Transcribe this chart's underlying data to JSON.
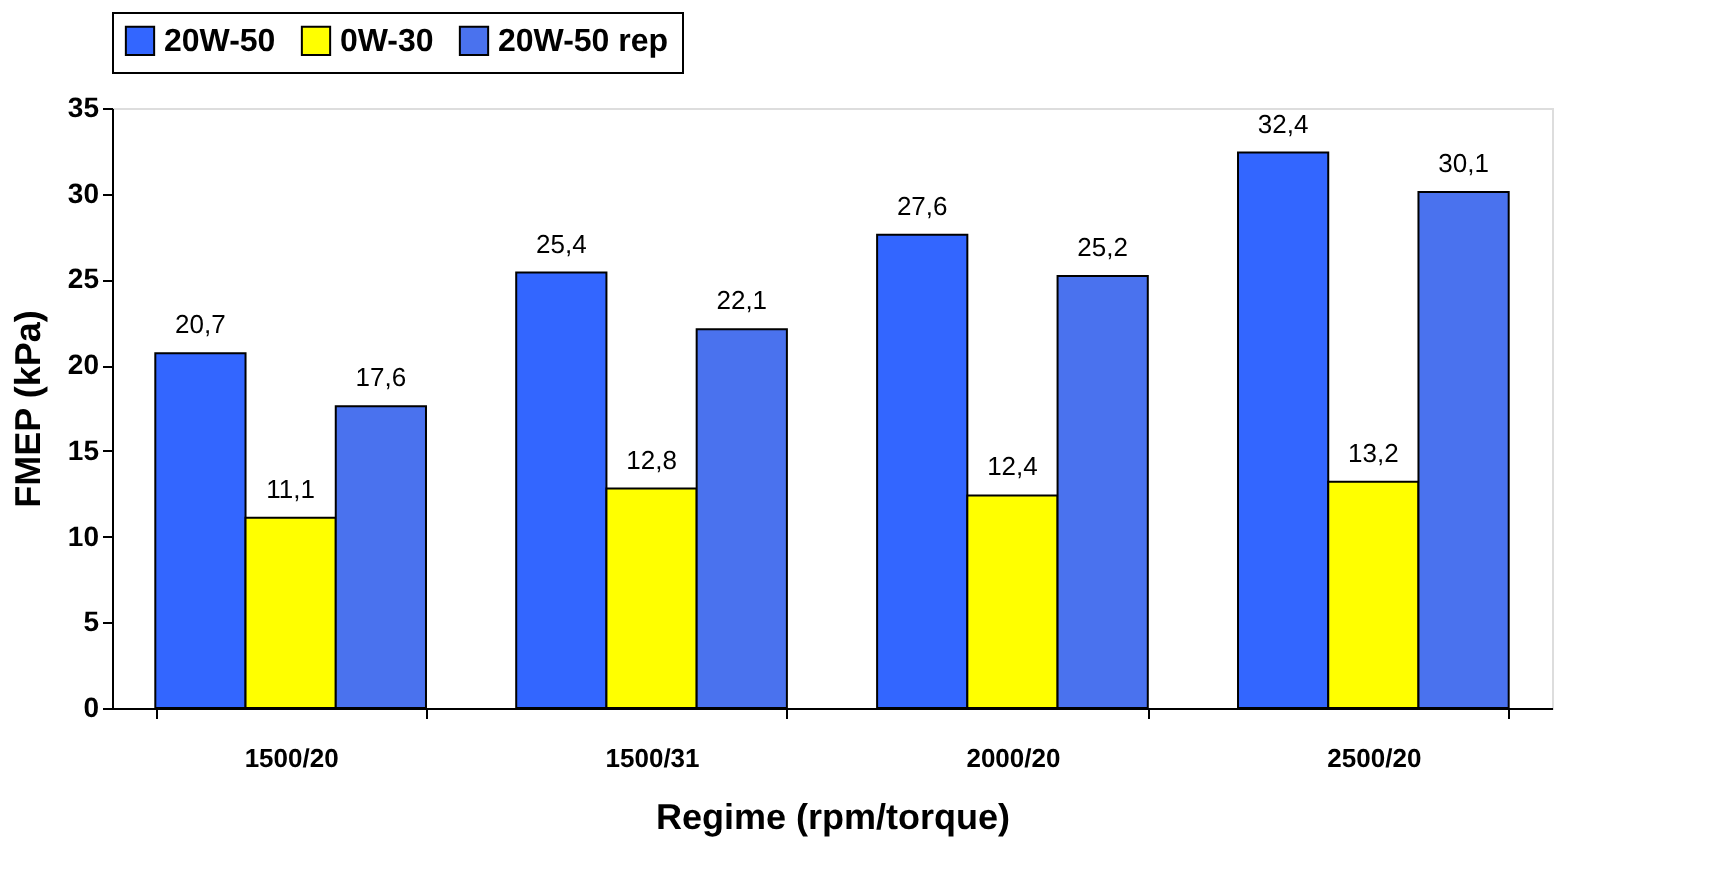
{
  "chart_data": {
    "type": "bar",
    "xlabel": "Regime (rpm/torque)",
    "ylabel": "FMEP (kPa)",
    "categories": [
      "1500/20",
      "1500/31",
      "2000/20",
      "2500/20"
    ],
    "series": [
      {
        "name": "20W-50",
        "color": "#3366ff",
        "values": [
          20.7,
          25.4,
          27.6,
          32.4
        ],
        "value_labels": [
          "20,7",
          "25,4",
          "27,6",
          "32,4"
        ]
      },
      {
        "name": "0W-30",
        "color": "#ffff00",
        "values": [
          11.1,
          12.8,
          12.4,
          13.2
        ],
        "value_labels": [
          "11,1",
          "12,8",
          "12,4",
          "13,2"
        ]
      },
      {
        "name": "20W-50 rep",
        "color": "#4a72ee",
        "values": [
          17.6,
          22.1,
          25.2,
          30.1
        ],
        "value_labels": [
          "17,6",
          "22,1",
          "25,2",
          "30,1"
        ]
      }
    ],
    "ylim": [
      0,
      35
    ],
    "yticks": [
      0,
      5,
      10,
      15,
      20,
      25,
      30,
      35
    ],
    "grid": false,
    "legend": "top"
  }
}
